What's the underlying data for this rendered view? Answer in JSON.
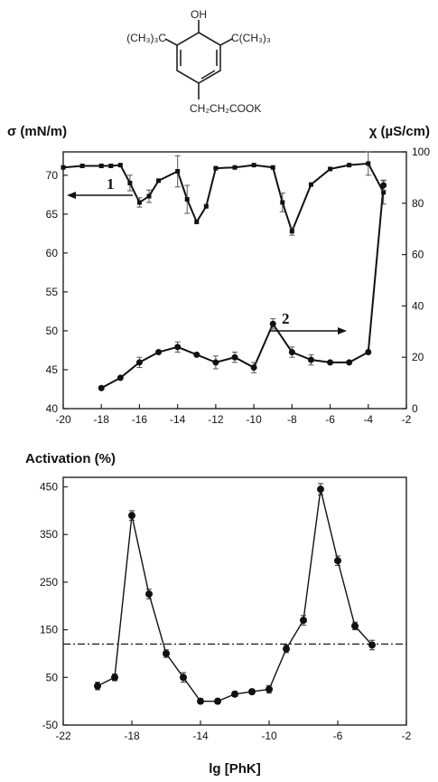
{
  "structure": {
    "oh": "OH",
    "left_group": "(CH₃)₃C",
    "right_group": "C(CH₃)₃",
    "side_chain": "CH₂CH₂COOK"
  },
  "chart_data": [
    {
      "type": "line",
      "ylabel_left": "σ (mN/m)",
      "ylabel_right": "χ (µS/cm)",
      "xlabel": "",
      "xlim": [
        -20,
        -2
      ],
      "xticks": [
        -20,
        -18,
        -16,
        -14,
        -12,
        -10,
        -8,
        -6,
        -4,
        -2
      ],
      "ylim_left": [
        40,
        73
      ],
      "yticks_left": [
        40,
        45,
        50,
        55,
        60,
        65,
        70
      ],
      "ylim_right": [
        0,
        100
      ],
      "yticks_right": [
        0,
        20,
        40,
        60,
        80,
        100
      ],
      "series": [
        {
          "name": "1",
          "axis": "left",
          "marker": "square",
          "x": [
            -20,
            -19,
            -18,
            -17.5,
            -17,
            -16.5,
            -16,
            -15.5,
            -15,
            -14,
            -13.5,
            -13,
            -12.5,
            -12,
            -11,
            -10,
            -9,
            -8.5,
            -8,
            -7,
            -6,
            -5,
            -4,
            -3.2
          ],
          "y": [
            71.0,
            71.2,
            71.2,
            71.2,
            71.3,
            69.0,
            66.5,
            67.3,
            69.3,
            70.5,
            66.9,
            64.0,
            66.0,
            70.9,
            71.0,
            71.3,
            71.0,
            66.5,
            62.8,
            68.8,
            70.8,
            71.3,
            71.5,
            67.8
          ],
          "error": [
            0,
            0,
            0,
            0,
            0,
            1.0,
            0.6,
            0.8,
            0,
            2.0,
            1.8,
            0,
            0,
            0,
            0,
            0,
            0,
            1.2,
            0.5,
            0,
            0,
            0,
            1.5,
            1.5
          ]
        },
        {
          "name": "2",
          "axis": "right",
          "marker": "circle",
          "x": [
            -18,
            -17,
            -16,
            -15,
            -14,
            -13,
            -12,
            -11,
            -10,
            -9,
            -8,
            -7,
            -6,
            -5,
            -4,
            -3.2
          ],
          "y": [
            8,
            12,
            18,
            22,
            24,
            21,
            18,
            20,
            16,
            33,
            22,
            19,
            18,
            18,
            22,
            87
          ],
          "error": [
            0,
            0,
            2,
            0,
            2,
            0,
            2.5,
            2,
            2,
            2,
            2,
            2,
            0,
            0,
            0,
            2
          ]
        }
      ],
      "annotations": [
        "1",
        "2"
      ]
    },
    {
      "type": "line",
      "title": "Activation (%)",
      "xlabel": "lg [PhK]",
      "ylabel": "",
      "xlim": [
        -22,
        -2
      ],
      "xticks": [
        -22,
        -18,
        -14,
        -10,
        -6,
        -2
      ],
      "ylim": [
        -50,
        470
      ],
      "yticks": [
        -50,
        50,
        150,
        250,
        350,
        450
      ],
      "reference_line": 120,
      "series": [
        {
          "x": [
            -20,
            -19,
            -18,
            -17,
            -16,
            -15,
            -14,
            -13,
            -12,
            -11,
            -10,
            -9,
            -8,
            -7,
            -6,
            -5,
            -4
          ],
          "y": [
            32,
            50,
            390,
            225,
            100,
            50,
            0,
            0,
            15,
            20,
            25,
            110,
            170,
            445,
            295,
            158,
            118
          ],
          "error": [
            8,
            7,
            10,
            10,
            8,
            10,
            5,
            5,
            5,
            5,
            8,
            8,
            10,
            12,
            10,
            8,
            10
          ]
        }
      ]
    }
  ]
}
